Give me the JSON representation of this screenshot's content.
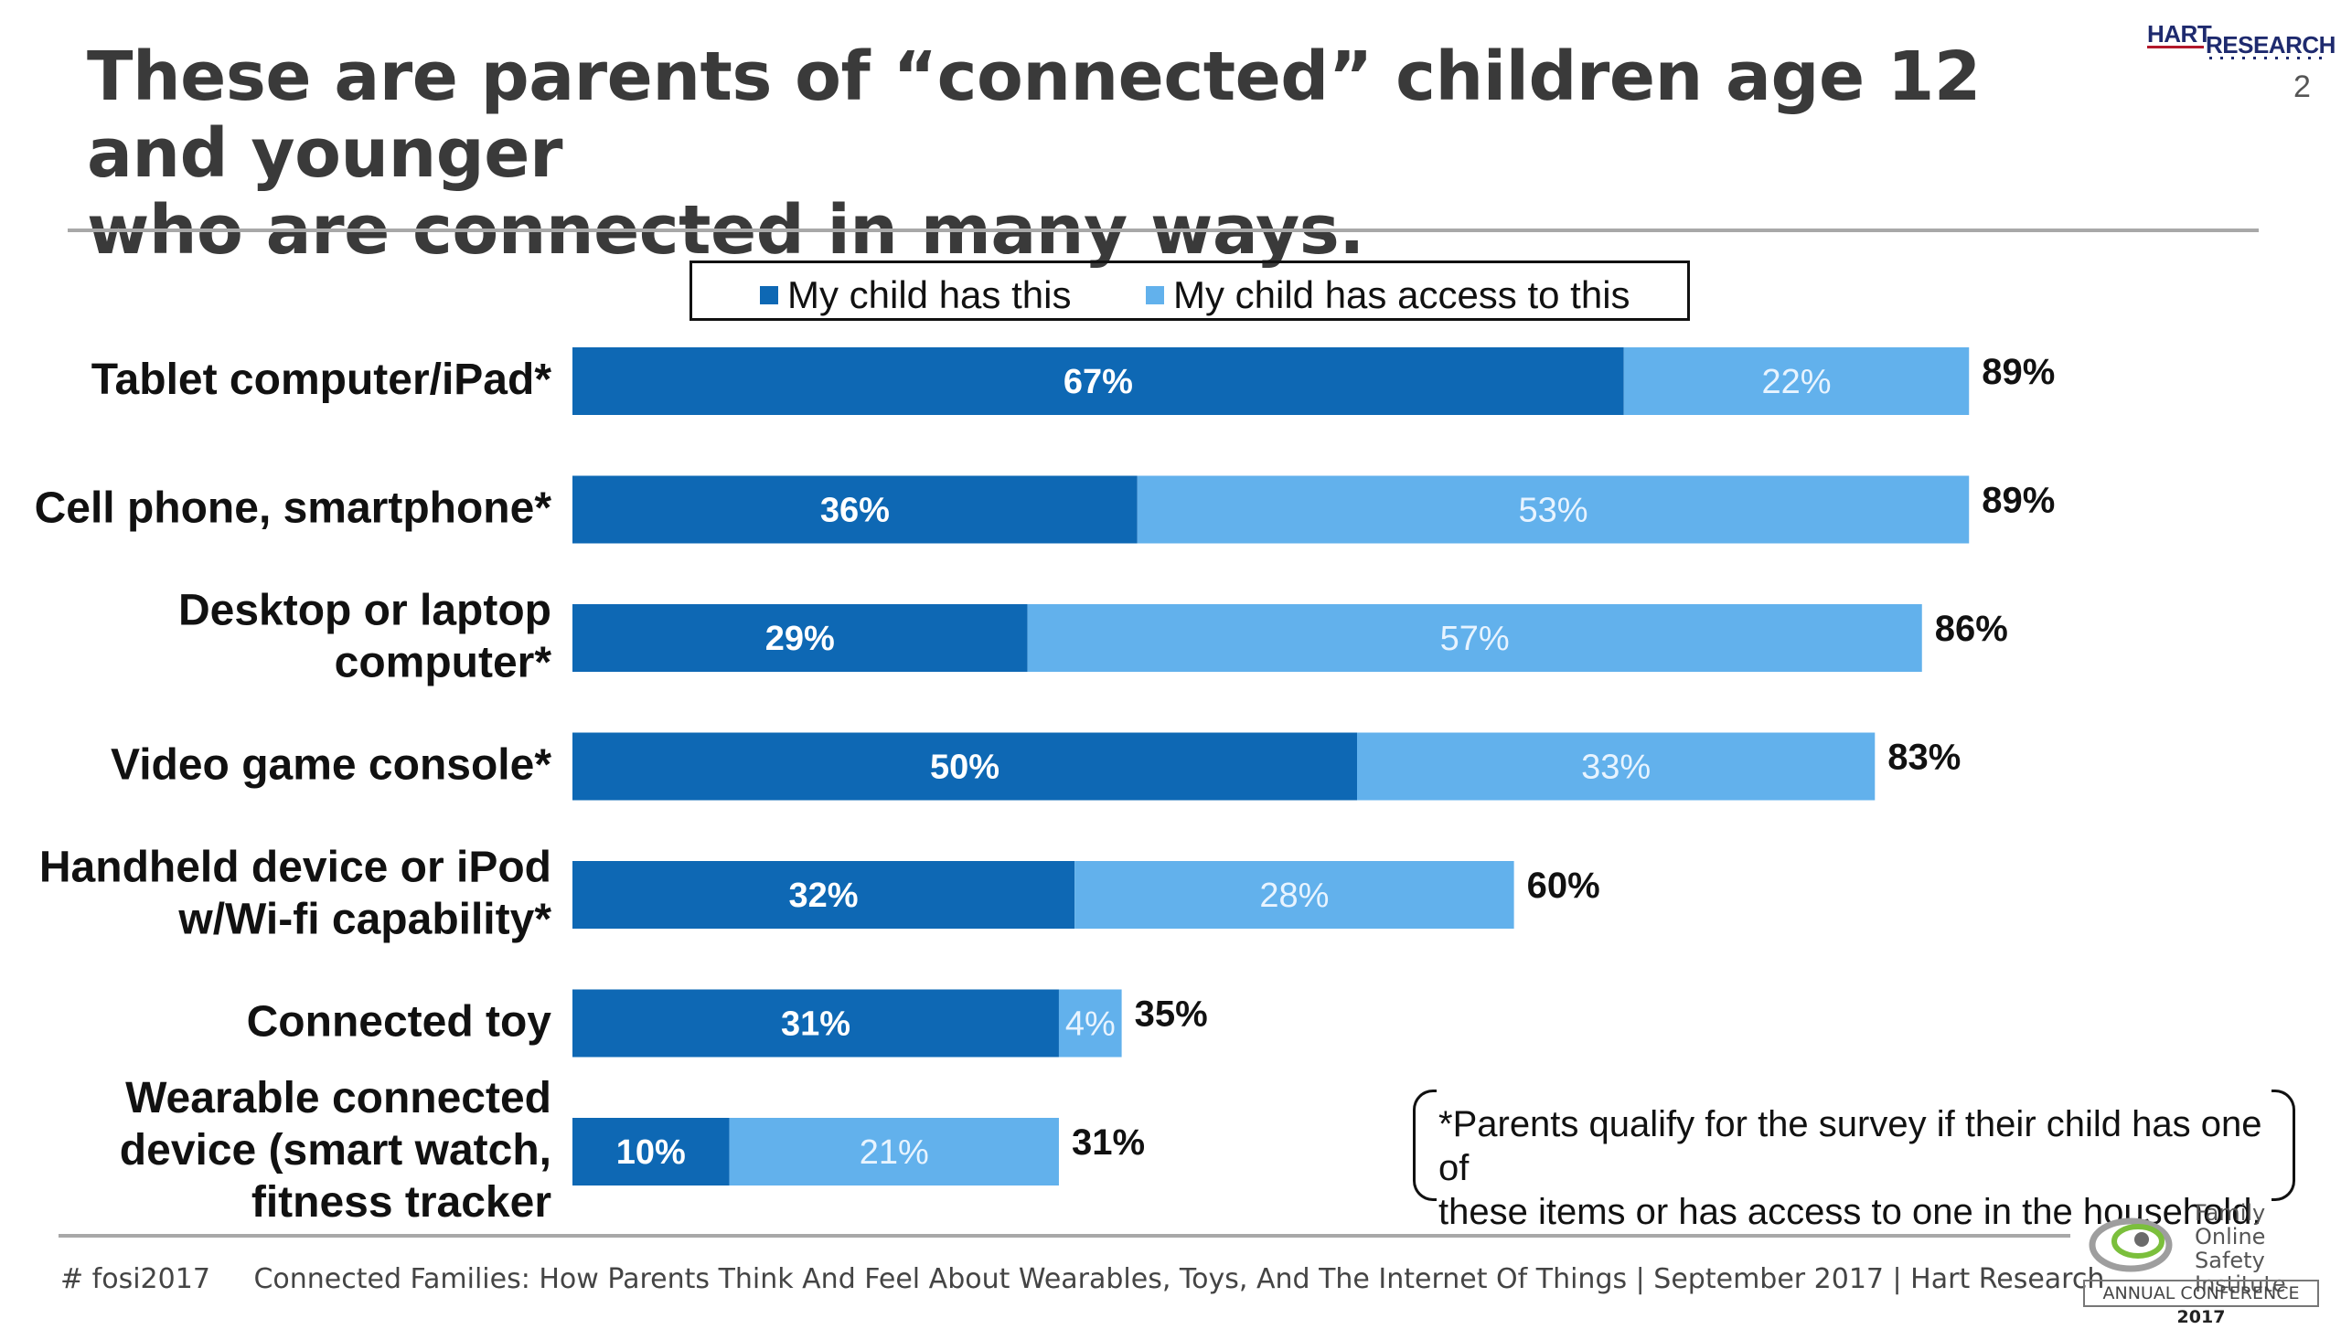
{
  "header": {
    "title_line1": "These are parents of “connected” children age 12 and younger",
    "title_line2": "who are connected in many ways.",
    "page_number": "2",
    "logo_word1": "HART",
    "logo_word2": "RESEARCH"
  },
  "legend": {
    "has_this": "My child has this",
    "has_access": "My child has access to this"
  },
  "colors": {
    "has_this": "#0e68b4",
    "has_access": "#62b1ec",
    "title": "#3a3a3a"
  },
  "chart_data": {
    "type": "bar",
    "orientation": "horizontal",
    "stacked": true,
    "categories": [
      "Tablet computer/iPad*",
      "Cell phone, smartphone*",
      "Desktop or laptop computer*",
      "Video game console*",
      "Handheld device or iPod w/Wi-fi capability*",
      "Connected toy",
      "Wearable connected device (smart watch, fitness tracker"
    ],
    "category_lines": [
      [
        "Tablet computer/iPad*"
      ],
      [
        "Cell phone, smartphone*"
      ],
      [
        "Desktop or laptop",
        "computer*"
      ],
      [
        "Video game console*"
      ],
      [
        "Handheld device or iPod",
        "w/Wi-fi capability*"
      ],
      [
        "Connected toy"
      ],
      [
        "Wearable connected",
        "device (smart watch,",
        "fitness tracker"
      ]
    ],
    "series": [
      {
        "name": "My child has this",
        "values": [
          67,
          36,
          29,
          50,
          32,
          31,
          10
        ]
      },
      {
        "name": "My child has access to this",
        "values": [
          22,
          53,
          57,
          33,
          28,
          4,
          21
        ]
      }
    ],
    "totals": [
      89,
      89,
      86,
      83,
      60,
      35,
      31
    ],
    "value_format": "percent",
    "legend_position": "top",
    "grid": false
  },
  "footnote": {
    "line1": "*Parents qualify for the survey if their child has one of",
    "line2": "these items or has access to one in the household."
  },
  "footer": {
    "hashtag": "# fosi2017",
    "source": "Connected Families: How Parents Think And Feel About Wearables, Toys, And The Internet Of Things | September 2017 | Hart Research"
  },
  "fosi_logo": {
    "line1": "Family",
    "line2": "Online Safety",
    "line3": "Institute",
    "conference_prefix": "ANNUAL CONFERENCE",
    "conference_year": "2017"
  }
}
